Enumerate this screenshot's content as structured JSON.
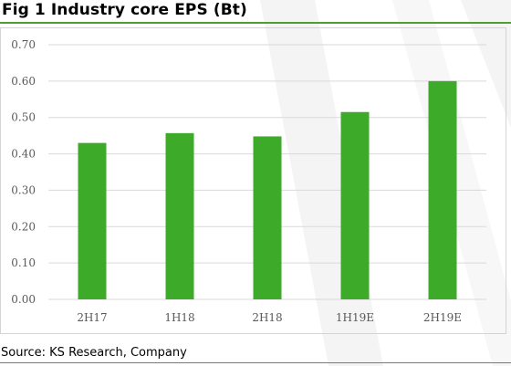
{
  "title": "Fig 1  Industry core EPS (Bt)",
  "source": "Source: KS Research, Company",
  "colors": {
    "bar": "#3daa2a",
    "rule": "#4f9f2f",
    "grid": "#d9d9d9",
    "axis_text": "#595959"
  },
  "chart_data": {
    "type": "bar",
    "categories": [
      "2H17",
      "1H18",
      "2H18",
      "1H19E",
      "2H19E"
    ],
    "values": [
      0.43,
      0.457,
      0.448,
      0.515,
      0.6
    ],
    "y_ticks": [
      "0.00",
      "0.10",
      "0.20",
      "0.30",
      "0.40",
      "0.50",
      "0.60",
      "0.70"
    ],
    "ylim": [
      0,
      0.7
    ],
    "grid": true,
    "legend": "none"
  }
}
